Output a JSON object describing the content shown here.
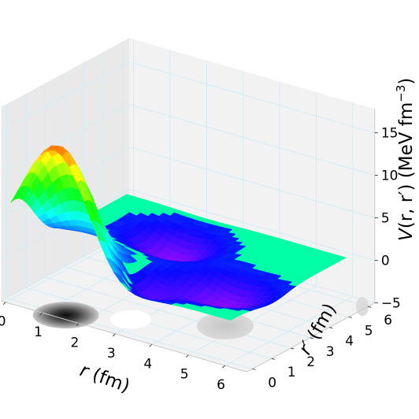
{
  "chart_data": {
    "type": "surface3d",
    "title": "",
    "xlabel": "r (fm)",
    "ylabel": "r′ (fm)",
    "zlabel": "V(r, r′) (MeV fm⁻³)",
    "xlabel_parts": {
      "var": "r",
      "unit": " (fm)"
    },
    "ylabel_parts": {
      "var": "r′",
      "unit": " (fm)"
    },
    "zlabel_parts": {
      "pre": "V",
      "args": "(r, r′)",
      "unit": " (MeV fm",
      "exp": "−3",
      "close": ")"
    },
    "x_ticks": [
      "0",
      "1",
      "2",
      "3",
      "4",
      "5",
      "6"
    ],
    "y_ticks": [
      "0",
      "1",
      "2",
      "3",
      "4",
      "5",
      "6"
    ],
    "z_ticks": [
      "−5",
      "0",
      "5",
      "10",
      "15"
    ],
    "xlim": [
      0,
      6
    ],
    "ylim": [
      0,
      6
    ],
    "zlim": [
      -5,
      17
    ],
    "grid": true,
    "colormap": "gist_rainbow",
    "contour_projection": "bottom",
    "surface_components": [
      {
        "kind": "peak",
        "center_r": 1.2,
        "center_rp": 0.2,
        "height": 14.5
      },
      {
        "kind": "trough",
        "center_r": 2.8,
        "center_rp": 0.9,
        "depth": -3.5
      },
      {
        "kind": "trough",
        "center_r": 2.2,
        "center_rp": 4.2,
        "depth": -3.0
      },
      {
        "kind": "trough",
        "center_r": 4.7,
        "center_rp": 2.2,
        "depth": -3.0
      }
    ],
    "colors": {
      "pane": "#f2f2f2",
      "pane_side": "#e9e9e9",
      "grid": "#d3ecf7",
      "flat_surface": "#00ffa6"
    }
  }
}
